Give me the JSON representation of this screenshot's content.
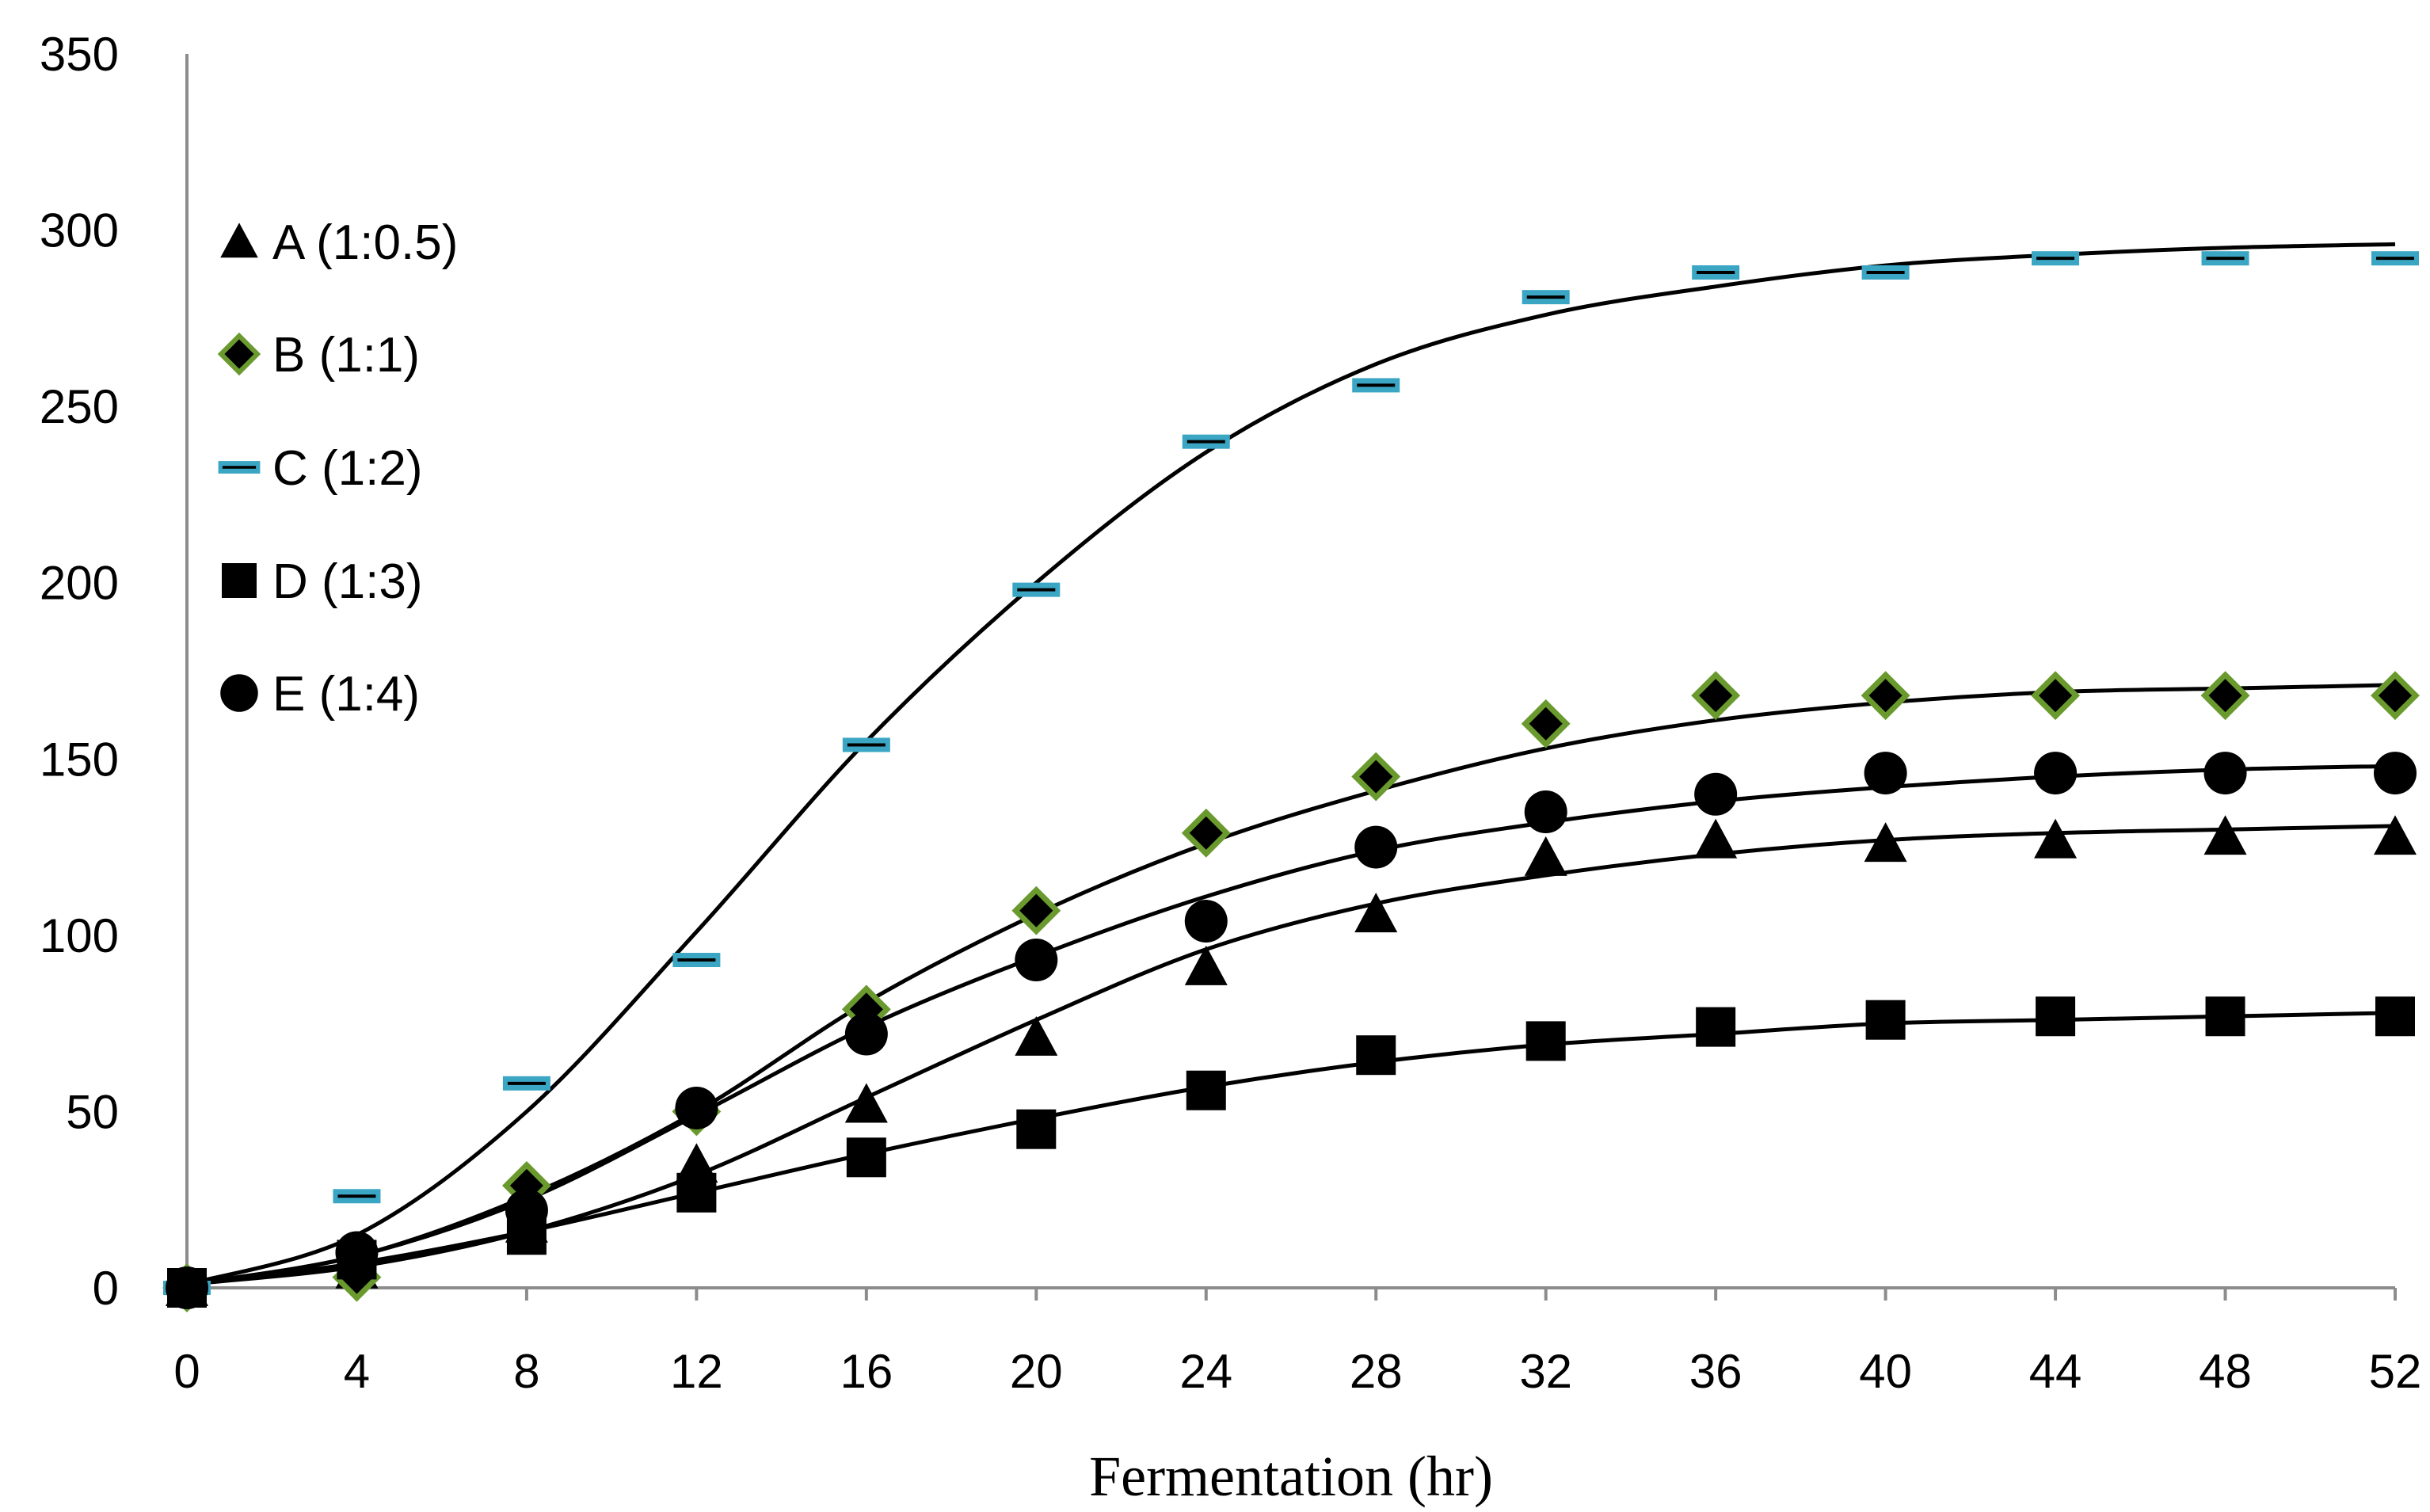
{
  "chart_data": {
    "type": "scatter",
    "title": "",
    "xlabel": "Fermentation (hr)",
    "ylabel": "",
    "xlim": [
      0,
      52
    ],
    "ylim": [
      0,
      350
    ],
    "x_ticks": [
      "0",
      "4",
      "8",
      "12",
      "16",
      "20",
      "24",
      "28",
      "32",
      "36",
      "40",
      "44",
      "48",
      "52"
    ],
    "y_ticks": [
      "0",
      "50",
      "100",
      "150",
      "200",
      "250",
      "300",
      "350"
    ],
    "grid": false,
    "legend_position": "top-left",
    "x": [
      0,
      4,
      8,
      12,
      16,
      20,
      24,
      28,
      32,
      36,
      40,
      44,
      48,
      52
    ],
    "series": [
      {
        "name": "A (1:0.5)",
        "marker": "triangle",
        "color": "#000000",
        "values": [
          0,
          5,
          18,
          35,
          52,
          71,
          91,
          106,
          122,
          127,
          126,
          127,
          128,
          128
        ],
        "fit": [
          1,
          6,
          16,
          32,
          54,
          76,
          96,
          109,
          117,
          123,
          127,
          129,
          130,
          131
        ]
      },
      {
        "name": "B (1:1)",
        "marker": "diamond",
        "color": "#000000",
        "edge_color": "#6a9a2e",
        "values": [
          0,
          3,
          29,
          50,
          79,
          107,
          129,
          145,
          160,
          168,
          168,
          168,
          168,
          168
        ],
        "fit": [
          1,
          9,
          26,
          50,
          81,
          106,
          126,
          141,
          153,
          161,
          166,
          169,
          170,
          171
        ]
      },
      {
        "name": "C (1:2)",
        "marker": "dash",
        "color": "#3aa6c4",
        "values": [
          0,
          26,
          58,
          93,
          154,
          198,
          240,
          256,
          281,
          288,
          288,
          292,
          292,
          292
        ],
        "fit": [
          1,
          15,
          50,
          101,
          155,
          200,
          237,
          262,
          276,
          284,
          290,
          293,
          295,
          296
        ]
      },
      {
        "name": "D (1:3)",
        "marker": "square",
        "color": "#000000",
        "values": [
          0,
          8,
          15,
          27,
          37,
          45,
          56,
          66,
          70,
          74,
          76,
          77,
          77,
          77
        ],
        "fit": [
          1,
          7,
          16,
          27,
          38,
          48,
          57,
          64,
          69,
          72,
          75,
          76,
          77,
          78
        ]
      },
      {
        "name": "E (1:4)",
        "marker": "circle",
        "color": "#000000",
        "values": [
          0,
          10,
          22,
          51,
          72,
          93,
          104,
          125,
          135,
          140,
          146,
          146,
          146,
          146
        ],
        "fit": [
          1,
          9,
          25,
          49,
          74,
          94,
          111,
          124,
          132,
          138,
          142,
          145,
          147,
          148
        ]
      }
    ]
  }
}
